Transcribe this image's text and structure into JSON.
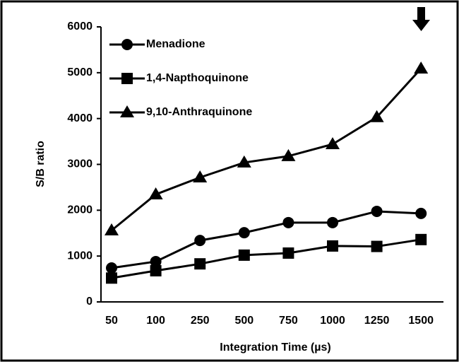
{
  "chart_data": {
    "type": "line",
    "xlabel": "Integration Time (µs)",
    "ylabel": "S/B ratio",
    "categories": [
      "50",
      "100",
      "250",
      "500",
      "750",
      "1000",
      "1250",
      "1500"
    ],
    "series": [
      {
        "name": "Menadione",
        "color": "#000000",
        "marker": "circle",
        "values": [
          740,
          880,
          1340,
          1510,
          1730,
          1730,
          1975,
          1930
        ]
      },
      {
        "name": "1,4-Napthoquinone",
        "color": "#000000",
        "marker": "square",
        "values": [
          520,
          680,
          830,
          1020,
          1065,
          1220,
          1210,
          1360
        ]
      },
      {
        "name": "9,10-Anthraquinone",
        "color": "#000000",
        "marker": "triangle",
        "values": [
          1560,
          2345,
          2715,
          3040,
          3180,
          3440,
          4030,
          5090
        ]
      }
    ],
    "ylim": [
      0,
      6000
    ],
    "yticks": [
      0,
      1000,
      2000,
      3000,
      4000,
      5000,
      6000
    ],
    "legend": "upper left"
  }
}
